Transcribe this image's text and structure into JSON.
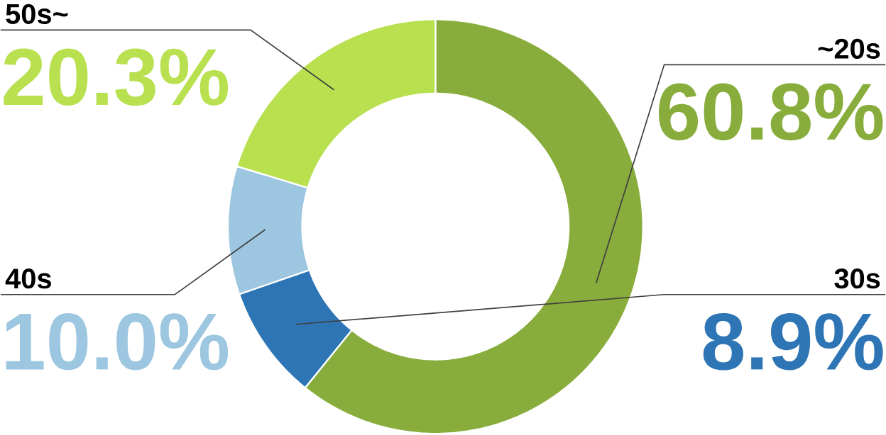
{
  "chart_data": {
    "type": "donut",
    "categories": [
      "~20s",
      "30s",
      "40s",
      "50s~"
    ],
    "values": [
      60.8,
      8.9,
      10.0,
      20.3
    ],
    "colors": [
      "#88ad3c",
      "#2e75b6",
      "#9dc6e0",
      "#b8e04f"
    ],
    "value_labels": [
      "60.8%",
      "8.9%",
      "10.0%",
      "20.3%"
    ]
  }
}
